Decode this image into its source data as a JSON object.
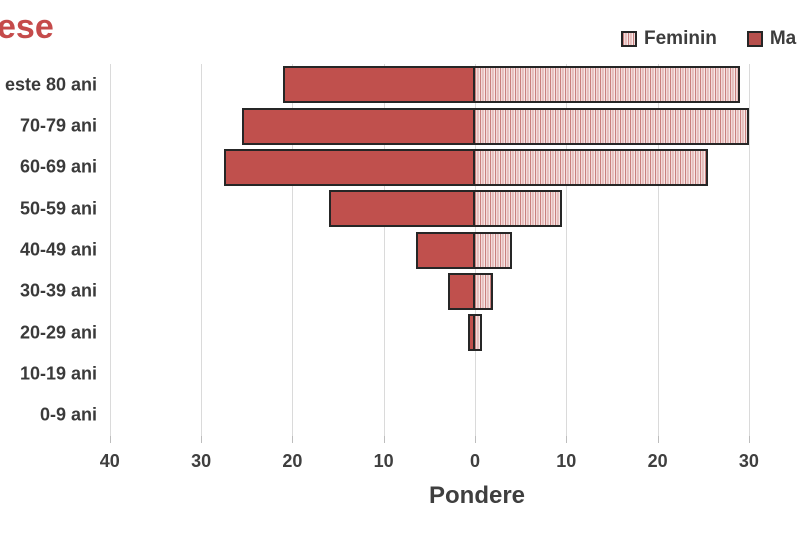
{
  "title": {
    "visible_text": "ese",
    "color": "#c54b4b"
  },
  "legend": {
    "position": "top-right",
    "items": [
      {
        "label": "Feminin",
        "swatch": "striped-pink"
      },
      {
        "label": "Ma",
        "swatch": "solid-dark-red"
      }
    ]
  },
  "chart_data": {
    "type": "bar",
    "variant": "population-pyramid-horizontal",
    "xlabel": "Pondere",
    "x_tick_labels": [
      "40",
      "30",
      "20",
      "10",
      "0",
      "10",
      "20",
      "30"
    ],
    "x_tick_values": [
      -40,
      -30,
      -20,
      -10,
      0,
      10,
      20,
      30
    ],
    "grid": true,
    "categories_top_to_bottom": [
      "este 80 ani",
      "70-79 ani",
      "60-69 ani",
      "50-59 ani",
      "40-49 ani",
      "30-39 ani",
      "20-29 ani",
      "10-19 ani",
      "0-9 ani"
    ],
    "series": [
      {
        "name": "Ma",
        "side": "left",
        "style": "solid",
        "values": [
          21,
          25.5,
          27.5,
          16,
          6.5,
          3,
          0.8,
          0,
          0
        ]
      },
      {
        "name": "Feminin",
        "side": "right",
        "style": "striped",
        "values": [
          29,
          30,
          25.5,
          9.5,
          4,
          2,
          0.8,
          0,
          0
        ]
      }
    ]
  },
  "colors": {
    "masculin_fill": "#c0504d",
    "feminin_stripe_dark": "#c8807e",
    "feminin_stripe_light": "#f3dbdb",
    "bar_border": "#262626",
    "gridline": "#dadada",
    "axis_text": "#3f3f3f",
    "title_red": "#c54b4b"
  }
}
